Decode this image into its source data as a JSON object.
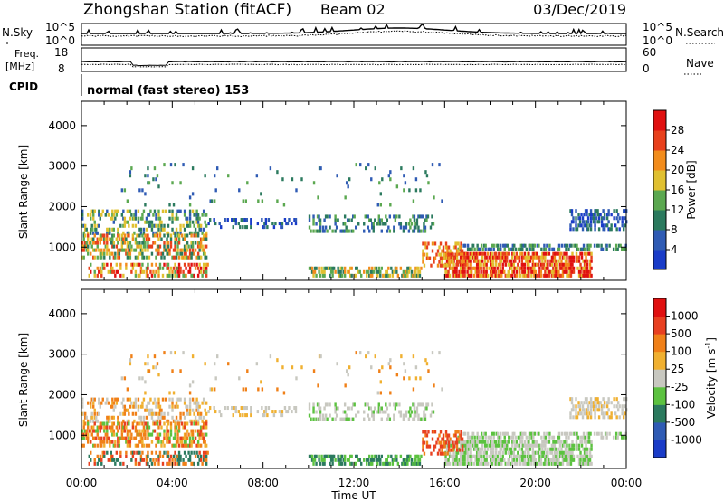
{
  "header": {
    "station": "Zhongshan Station (fitACF)",
    "beam": "Beam 02",
    "date": "03/Dec/2019"
  },
  "top_strips": {
    "nsky": {
      "label": "N.Sky",
      "tick_labels": [
        "10^5",
        "10^0"
      ],
      "right_label": "N.Search",
      "right_tick_labels": [
        "10^5",
        "10^0"
      ]
    },
    "freq": {
      "label_line1": "Freq.",
      "label_line2": "[MHz]",
      "tick_labels": [
        "18",
        "8"
      ],
      "right_label": "Nave",
      "right_tick_labels": [
        "60",
        "0"
      ]
    },
    "cpid": {
      "label": "CPID",
      "text": "normal (fast stereo) 153"
    }
  },
  "chart_data": [
    {
      "type": "heatmap",
      "name": "power",
      "ylabel": "Slant Range [km]",
      "y_tick_labels": [
        "1000",
        "2000",
        "3000",
        "4000"
      ],
      "y_ticks": [
        1000,
        2000,
        3000,
        4000
      ],
      "ylim": [
        180,
        4600
      ],
      "xlim": [
        0,
        24
      ],
      "colorbar": {
        "label": "Power [dB]",
        "tick_labels": [
          "4",
          "8",
          "12",
          "16",
          "20",
          "24",
          "28"
        ],
        "ticks": [
          4,
          8,
          12,
          16,
          20,
          24,
          28
        ],
        "range": [
          0,
          30
        ],
        "colors": [
          "#1a3cc8",
          "#2f5bb4",
          "#2b7a5e",
          "#5ba850",
          "#e0c030",
          "#f28c1c",
          "#e8401c",
          "#e01010"
        ]
      }
    },
    {
      "type": "heatmap",
      "name": "velocity",
      "ylabel": "Slant Range [km]",
      "y_tick_labels": [
        "1000",
        "2000",
        "3000",
        "4000"
      ],
      "y_ticks": [
        1000,
        2000,
        3000,
        4000
      ],
      "ylim": [
        180,
        4600
      ],
      "xlim": [
        0,
        24
      ],
      "colorbar": {
        "label": "Velocity [m s",
        "label_sup": "-1",
        "label_close": "]",
        "tick_labels": [
          "1000",
          "500",
          "100",
          "25",
          "-25",
          "-100",
          "-500",
          "-1000"
        ],
        "colors": [
          "#1a3cc8",
          "#2f5bb4",
          "#2b7a5e",
          "#5cc240",
          "#c8c8c0",
          "#f0b030",
          "#f08018",
          "#e84020",
          "#e01010"
        ]
      }
    }
  ],
  "x_axis": {
    "label": "Time UT",
    "tick_labels": [
      "00:00",
      "04:00",
      "08:00",
      "12:00",
      "16:00",
      "20:00",
      "00:00"
    ],
    "ticks": [
      0,
      4,
      8,
      12,
      16,
      20,
      24
    ]
  }
}
